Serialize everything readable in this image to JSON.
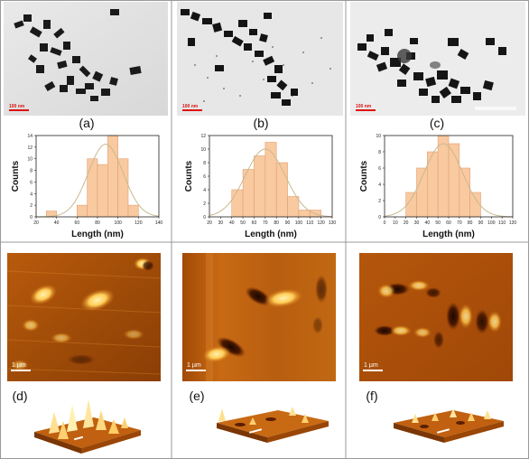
{
  "panels": {
    "a": {
      "label": "(a)",
      "scale": "100 nm"
    },
    "b": {
      "label": "(b)",
      "scale": "100 nm"
    },
    "c": {
      "label": "(c)",
      "scale": "100 nm"
    },
    "d": {
      "label": "(d)",
      "scale": "1 µm"
    },
    "e": {
      "label": "(e)",
      "scale": "1 µm"
    },
    "f": {
      "label": "(f)",
      "scale": "1 µm"
    }
  },
  "colors": {
    "bar": "#f9c9a0",
    "bar_edge": "#e0a070",
    "fit_curve": "#c9b98f",
    "tem_bg": "#e4e4e4",
    "afm_dark": "#5a1e00",
    "afm_mid": "#c0600a",
    "afm_light": "#ffd070"
  },
  "chart_data": [
    {
      "type": "bar",
      "xlabel": "Length (nm)",
      "ylabel": "Counts",
      "xlim": [
        20,
        140
      ],
      "ylim": [
        0,
        14
      ],
      "xticks": [
        20,
        40,
        60,
        80,
        100,
        120,
        140
      ],
      "yticks": [
        0,
        2,
        4,
        6,
        8,
        10,
        12,
        14
      ],
      "bin_width": 10,
      "bins": [
        35,
        65,
        75,
        85,
        95,
        105,
        115
      ],
      "values": [
        1,
        2,
        10,
        9,
        14,
        10,
        2
      ],
      "fit": {
        "mean": 88,
        "sigma": 17,
        "peak": 12.5
      }
    },
    {
      "type": "bar",
      "xlabel": "Length (nm)",
      "ylabel": "Counts",
      "xlim": [
        20,
        130
      ],
      "ylim": [
        0,
        12
      ],
      "xticks": [
        20,
        30,
        40,
        50,
        60,
        70,
        80,
        90,
        100,
        110,
        120,
        130
      ],
      "yticks": [
        0,
        2,
        4,
        6,
        8,
        10,
        12
      ],
      "bin_width": 10,
      "bins": [
        45,
        55,
        65,
        75,
        85,
        95,
        105,
        115
      ],
      "values": [
        4,
        7,
        9,
        11,
        8,
        3,
        1,
        1
      ],
      "fit": {
        "mean": 70,
        "sigma": 18,
        "peak": 10
      }
    },
    {
      "type": "bar",
      "xlabel": "Length (nm)",
      "ylabel": "Counts",
      "xlim": [
        0,
        120
      ],
      "ylim": [
        0,
        10
      ],
      "xticks": [
        0,
        10,
        20,
        30,
        40,
        50,
        60,
        70,
        80,
        90,
        100,
        110,
        120
      ],
      "yticks": [
        0,
        2,
        4,
        6,
        8,
        10
      ],
      "bin_width": 10,
      "bins": [
        25,
        35,
        45,
        55,
        65,
        75,
        85
      ],
      "values": [
        3,
        6,
        8,
        10,
        9,
        6,
        3
      ],
      "fit": {
        "mean": 55,
        "sigma": 18,
        "peak": 9
      }
    }
  ]
}
